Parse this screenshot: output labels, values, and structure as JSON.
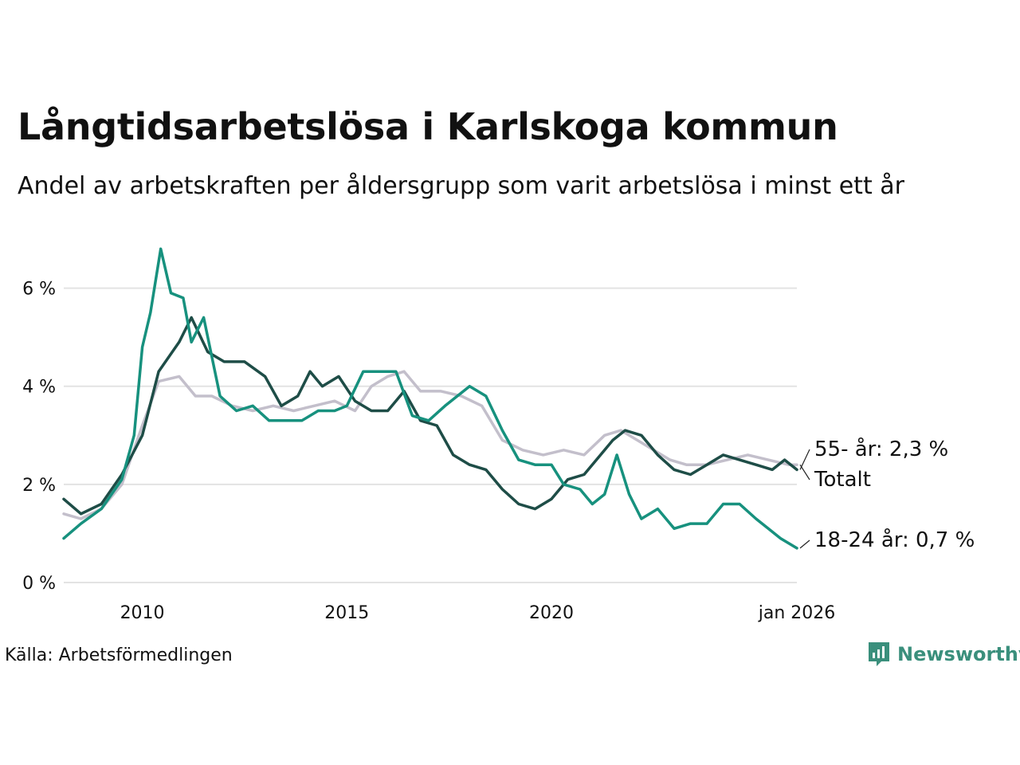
{
  "chart_data": {
    "type": "line",
    "title": "Långtidsarbetslösa i Karlskoga kommun",
    "subtitle": "Andel av arbetskraften per åldersgrupp som varit arbetslösa i minst ett år",
    "ylabel": "",
    "xlabel": "",
    "ylim": [
      0,
      7
    ],
    "xlim": [
      2008.08,
      2026.0
    ],
    "y_ticks": [
      0,
      2,
      4,
      6
    ],
    "y_tick_labels": [
      "0 %",
      "2 %",
      "4 %",
      "6 %"
    ],
    "x_ticks": [
      2010,
      2015,
      2020,
      2026
    ],
    "x_tick_labels": [
      "2010",
      "2015",
      "2020",
      "jan 2026"
    ],
    "grid": true,
    "series": [
      {
        "name": "Totalt",
        "end_label": "Totalt",
        "color": "#c3bfcb",
        "x": [
          2008.08,
          2008.5,
          2009.0,
          2009.5,
          2010.0,
          2010.4,
          2010.9,
          2011.3,
          2011.7,
          2012.2,
          2012.7,
          2013.2,
          2013.7,
          2014.2,
          2014.7,
          2015.2,
          2015.6,
          2016.0,
          2016.4,
          2016.8,
          2017.3,
          2017.8,
          2018.3,
          2018.8,
          2019.3,
          2019.8,
          2020.3,
          2020.8,
          2021.3,
          2021.7,
          2022.1,
          2022.5,
          2022.9,
          2023.3,
          2023.8,
          2024.3,
          2024.8,
          2025.3,
          2025.8,
          2026.0
        ],
        "values": [
          1.4,
          1.3,
          1.5,
          2.0,
          3.2,
          4.1,
          4.2,
          3.8,
          3.8,
          3.6,
          3.5,
          3.6,
          3.5,
          3.6,
          3.7,
          3.5,
          4.0,
          4.2,
          4.3,
          3.9,
          3.9,
          3.8,
          3.6,
          2.9,
          2.7,
          2.6,
          2.7,
          2.6,
          3.0,
          3.1,
          2.9,
          2.7,
          2.5,
          2.4,
          2.4,
          2.5,
          2.6,
          2.5,
          2.4,
          2.4
        ]
      },
      {
        "name": "55- år",
        "end_label": "55- år: 2,3 %",
        "color": "#1e4d47",
        "x": [
          2008.08,
          2008.5,
          2009.0,
          2009.5,
          2010.0,
          2010.4,
          2010.9,
          2011.2,
          2011.6,
          2012.0,
          2012.5,
          2013.0,
          2013.4,
          2013.8,
          2014.1,
          2014.4,
          2014.8,
          2015.2,
          2015.6,
          2016.0,
          2016.4,
          2016.8,
          2017.2,
          2017.6,
          2018.0,
          2018.4,
          2018.8,
          2019.2,
          2019.6,
          2020.0,
          2020.4,
          2020.8,
          2021.2,
          2021.5,
          2021.8,
          2022.2,
          2022.6,
          2023.0,
          2023.4,
          2023.8,
          2024.2,
          2024.6,
          2025.0,
          2025.4,
          2025.7,
          2026.0
        ],
        "values": [
          1.7,
          1.4,
          1.6,
          2.2,
          3.0,
          4.3,
          4.9,
          5.4,
          4.7,
          4.5,
          4.5,
          4.2,
          3.6,
          3.8,
          4.3,
          4.0,
          4.2,
          3.7,
          3.5,
          3.5,
          3.9,
          3.3,
          3.2,
          2.6,
          2.4,
          2.3,
          1.9,
          1.6,
          1.5,
          1.7,
          2.1,
          2.2,
          2.6,
          2.9,
          3.1,
          3.0,
          2.6,
          2.3,
          2.2,
          2.4,
          2.6,
          2.5,
          2.4,
          2.3,
          2.5,
          2.3
        ]
      },
      {
        "name": "18-24 år",
        "end_label": "18-24 år: 0,7 %",
        "color": "#17917e",
        "x": [
          2008.08,
          2008.5,
          2009.0,
          2009.5,
          2009.8,
          2010.0,
          2010.2,
          2010.45,
          2010.7,
          2011.0,
          2011.2,
          2011.5,
          2011.9,
          2012.3,
          2012.7,
          2013.1,
          2013.5,
          2013.9,
          2014.3,
          2014.7,
          2015.0,
          2015.4,
          2015.8,
          2016.2,
          2016.6,
          2017.0,
          2017.4,
          2017.7,
          2018.0,
          2018.4,
          2018.8,
          2019.2,
          2019.6,
          2020.0,
          2020.3,
          2020.7,
          2021.0,
          2021.3,
          2021.6,
          2021.9,
          2022.2,
          2022.6,
          2023.0,
          2023.4,
          2023.8,
          2024.2,
          2024.6,
          2025.0,
          2025.3,
          2025.6,
          2026.0
        ],
        "values": [
          0.9,
          1.2,
          1.5,
          2.1,
          3.0,
          4.8,
          5.5,
          6.8,
          5.9,
          5.8,
          4.9,
          5.4,
          3.8,
          3.5,
          3.6,
          3.3,
          3.3,
          3.3,
          3.5,
          3.5,
          3.6,
          4.3,
          4.3,
          4.3,
          3.4,
          3.3,
          3.6,
          3.8,
          4.0,
          3.8,
          3.1,
          2.5,
          2.4,
          2.4,
          2.0,
          1.9,
          1.6,
          1.8,
          2.6,
          1.8,
          1.3,
          1.5,
          1.1,
          1.2,
          1.2,
          1.6,
          1.6,
          1.3,
          1.1,
          0.9,
          0.7
        ]
      }
    ]
  },
  "source": "Källa: Arbetsförmedlingen",
  "brand": {
    "name": "Newsworthy",
    "color": "#3a8f7c",
    "icon": "newsworthy-logo-icon"
  },
  "colors": {
    "grid": "#e3e3e3",
    "text": "#111111"
  }
}
